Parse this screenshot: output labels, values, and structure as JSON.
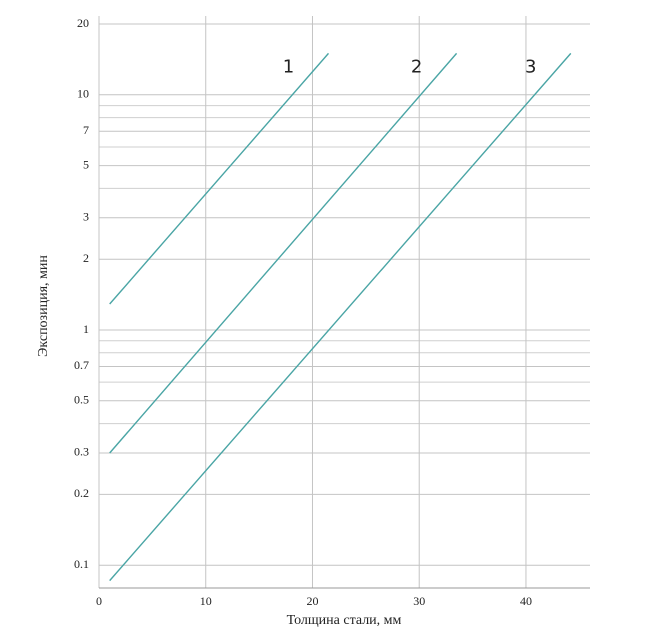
{
  "chart_data": {
    "type": "line",
    "x_label": "Толщина стали, мм",
    "y_label": "Экспозиция, мин",
    "series": [
      {
        "name": "1",
        "color": "#4aa5a5",
        "x": [
          1,
          21.5
        ],
        "values": [
          1.29,
          15
        ]
      },
      {
        "name": "2",
        "color": "#4aa5a5",
        "x": [
          1,
          33.5
        ],
        "values": [
          0.3,
          15
        ]
      },
      {
        "name": "3",
        "color": "#4aa5a5",
        "x": [
          1,
          44.2
        ],
        "values": [
          0.086,
          15
        ]
      }
    ],
    "xlim": [
      0,
      46
    ],
    "xticks": [
      0,
      10,
      20,
      30,
      40
    ],
    "ylim": [
      0.08,
      20
    ],
    "yticks": [
      0.1,
      0.2,
      0.3,
      0.5,
      0.7,
      1,
      2,
      3,
      5,
      7,
      10,
      20
    ],
    "y_minor_gridlines": [
      0.4,
      0.6,
      0.8,
      0.9,
      4,
      6,
      8,
      9
    ],
    "log_y": true,
    "grid": true
  }
}
